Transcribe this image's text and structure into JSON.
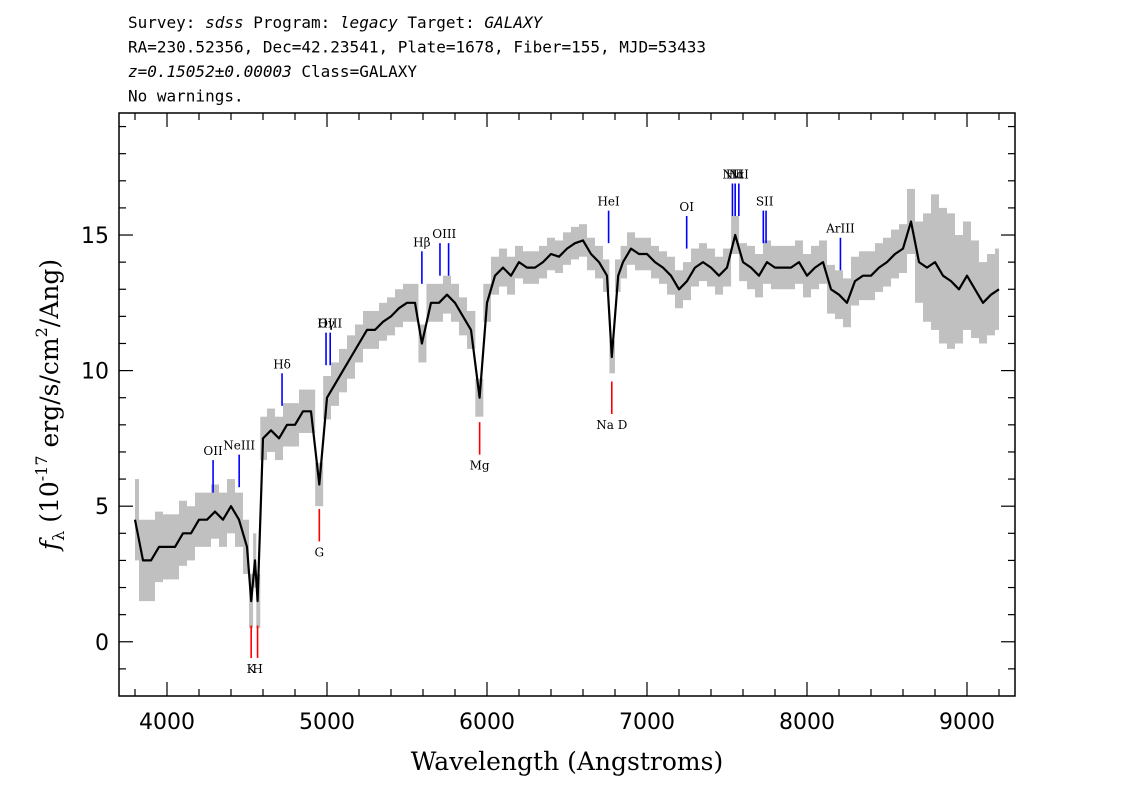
{
  "chart_data": {
    "type": "spectrum",
    "title_lines": [
      [
        {
          "text": "Survey: "
        },
        {
          "text": "sdss",
          "italic": true
        },
        {
          "text": " Program: "
        },
        {
          "text": "legacy",
          "italic": true
        },
        {
          "text": " Target: "
        },
        {
          "text": "GALAXY",
          "italic": true
        }
      ],
      [
        {
          "text": "RA=230.52356, Dec=42.23541, Plate=1678, Fiber=155, MJD=53433"
        }
      ],
      [
        {
          "text": "z=0.15052±0.00003",
          "italic": true
        },
        {
          "text": " Class=GALAXY"
        }
      ],
      [
        {
          "text": "No warnings."
        }
      ]
    ],
    "x_label": "Wavelength (Angstroms)",
    "y_label": [
      {
        "text": "f",
        "style": "italic"
      },
      {
        "text": "λ",
        "style": "sub"
      },
      {
        "text": " (10"
      },
      {
        "text": "-17",
        "style": "sup"
      },
      {
        "text": " erg/s/cm"
      },
      {
        "text": "2",
        "style": "sup"
      },
      {
        "text": "/Ang)"
      }
    ],
    "x": [
      3800,
      3850,
      3900,
      3950,
      4000,
      4050,
      4100,
      4150,
      4200,
      4250,
      4300,
      4350,
      4400,
      4450,
      4500,
      4526,
      4550,
      4566,
      4600,
      4650,
      4700,
      4750,
      4800,
      4850,
      4900,
      4952,
      5000,
      5050,
      5100,
      5150,
      5200,
      5250,
      5300,
      5350,
      5400,
      5450,
      5500,
      5550,
      5593,
      5650,
      5700,
      5750,
      5800,
      5850,
      5900,
      5954,
      6000,
      6050,
      6100,
      6150,
      6200,
      6250,
      6300,
      6350,
      6400,
      6450,
      6500,
      6550,
      6600,
      6650,
      6700,
      6750,
      6780,
      6820,
      6850,
      6900,
      6950,
      7000,
      7050,
      7100,
      7150,
      7200,
      7250,
      7300,
      7350,
      7400,
      7450,
      7500,
      7551,
      7600,
      7650,
      7700,
      7750,
      7800,
      7850,
      7900,
      7950,
      8000,
      8050,
      8100,
      8150,
      8200,
      8250,
      8300,
      8350,
      8400,
      8450,
      8500,
      8550,
      8600,
      8650,
      8700,
      8750,
      8800,
      8850,
      8900,
      8950,
      9000,
      9050,
      9100,
      9150,
      9200
    ],
    "series": [
      {
        "color": "#000000",
        "values": [
          4.5,
          3.0,
          3.0,
          3.5,
          3.5,
          3.5,
          4.0,
          4.0,
          4.5,
          4.5,
          4.8,
          4.5,
          5.0,
          4.5,
          3.5,
          1.5,
          3.0,
          1.5,
          7.5,
          7.8,
          7.5,
          8.0,
          8.0,
          8.5,
          8.5,
          5.8,
          9.0,
          9.5,
          10.0,
          10.5,
          11.0,
          11.5,
          11.5,
          11.8,
          12.0,
          12.3,
          12.5,
          12.5,
          11.0,
          12.5,
          12.5,
          12.8,
          12.5,
          12.0,
          11.5,
          9.0,
          12.5,
          13.5,
          13.8,
          13.5,
          14.0,
          13.8,
          13.8,
          14.0,
          14.3,
          14.2,
          14.5,
          14.7,
          14.8,
          14.3,
          14.0,
          13.5,
          10.5,
          13.5,
          14.0,
          14.5,
          14.3,
          14.3,
          14.0,
          13.8,
          13.5,
          13.0,
          13.3,
          13.8,
          14.0,
          13.8,
          13.5,
          13.8,
          15.0,
          14.0,
          13.8,
          13.5,
          14.0,
          13.8,
          13.8,
          13.8,
          14.0,
          13.5,
          13.8,
          14.0,
          13.0,
          12.8,
          12.5,
          13.3,
          13.5,
          13.5,
          13.8,
          14.0,
          14.3,
          14.5,
          15.5,
          14.0,
          13.8,
          14.0,
          13.5,
          13.3,
          13.0,
          13.5,
          13.0,
          12.5,
          12.8,
          13.0
        ],
        "error_color": "#c0c0c0",
        "errors": [
          1.5,
          1.5,
          1.5,
          1.3,
          1.2,
          1.2,
          1.2,
          1.0,
          1.0,
          1.0,
          1.0,
          1.0,
          1.0,
          1.0,
          1.0,
          1.0,
          1.0,
          1.0,
          0.8,
          0.8,
          0.8,
          0.8,
          0.8,
          0.8,
          0.8,
          0.8,
          0.8,
          0.8,
          0.8,
          0.8,
          0.7,
          0.7,
          0.7,
          0.7,
          0.7,
          0.7,
          0.7,
          0.7,
          0.7,
          0.7,
          0.7,
          0.7,
          0.7,
          0.7,
          0.7,
          0.7,
          0.7,
          0.7,
          0.7,
          0.7,
          0.6,
          0.6,
          0.6,
          0.6,
          0.6,
          0.6,
          0.6,
          0.6,
          0.6,
          0.6,
          0.6,
          0.6,
          0.6,
          0.6,
          0.6,
          0.6,
          0.6,
          0.6,
          0.6,
          0.6,
          0.7,
          0.7,
          0.7,
          0.7,
          0.7,
          0.7,
          0.7,
          0.7,
          0.7,
          0.7,
          0.8,
          0.8,
          0.8,
          0.8,
          0.8,
          0.8,
          0.8,
          0.8,
          0.8,
          0.8,
          0.9,
          0.9,
          0.9,
          0.9,
          0.9,
          0.9,
          0.9,
          0.9,
          0.9,
          0.9,
          1.2,
          1.5,
          2.0,
          2.5,
          2.5,
          2.5,
          2.0,
          2.0,
          1.8,
          1.5,
          1.5,
          1.5
        ]
      }
    ],
    "lines": [
      {
        "label": "OII",
        "waves": [
          4288
        ],
        "color": "#0000ff",
        "kind": "emission"
      },
      {
        "label": "NeIII",
        "waves": [
          4451
        ],
        "color": "#0000ff",
        "kind": "emission"
      },
      {
        "label": "Hδ",
        "waves": [
          4719
        ],
        "color": "#0000ff",
        "kind": "emission"
      },
      {
        "label": "Hγ",
        "waves": [
          4994
        ],
        "color": "#0000ff",
        "kind": "emission"
      },
      {
        "label": "OIII",
        "waves": [
          5020
        ],
        "color": "#0000ff",
        "kind": "emission"
      },
      {
        "label": "Hβ",
        "waves": [
          5593
        ],
        "color": "#0000ff",
        "kind": "emission"
      },
      {
        "label": "OIII",
        "waves": [
          5706,
          5760
        ],
        "color": "#0000ff",
        "kind": "emission"
      },
      {
        "label": "HeI",
        "waves": [
          6760
        ],
        "color": "#0000ff",
        "kind": "emission"
      },
      {
        "label": "OI",
        "waves": [
          7248
        ],
        "color": "#0000ff",
        "kind": "emission"
      },
      {
        "label": "NII",
        "waves": [
          7534
        ],
        "color": "#0000ff",
        "kind": "emission"
      },
      {
        "label": "Hα",
        "waves": [
          7551
        ],
        "color": "#0000ff",
        "kind": "emission"
      },
      {
        "label": "NII",
        "waves": [
          7574
        ],
        "color": "#0000ff",
        "kind": "emission"
      },
      {
        "label": "SII",
        "waves": [
          7727,
          7744
        ],
        "color": "#0000ff",
        "kind": "emission"
      },
      {
        "label": "ArIII",
        "waves": [
          8209
        ],
        "color": "#0000ff",
        "kind": "emission"
      },
      {
        "label": "K",
        "waves": [
          4526
        ],
        "color": "#ff0000",
        "kind": "absorption"
      },
      {
        "label": "H",
        "waves": [
          4566
        ],
        "color": "#ff0000",
        "kind": "absorption"
      },
      {
        "label": "G",
        "waves": [
          4952
        ],
        "color": "#ff0000",
        "kind": "absorption"
      },
      {
        "label": "Mg",
        "waves": [
          5954
        ],
        "color": "#ff0000",
        "kind": "absorption"
      },
      {
        "label": "Na D",
        "waves": [
          6780
        ],
        "color": "#ff0000",
        "kind": "absorption"
      }
    ],
    "xlim": [
      3700,
      9300
    ],
    "ylim": [
      -2,
      19.5
    ],
    "xticks": [
      4000,
      5000,
      6000,
      7000,
      8000,
      9000
    ],
    "yticks": [
      0,
      5,
      10,
      15
    ],
    "xminorticks": [
      3800,
      4200,
      4400,
      4600,
      4800,
      5200,
      5400,
      5600,
      5800,
      6200,
      6400,
      6600,
      6800,
      7200,
      7400,
      7600,
      7800,
      8200,
      8400,
      8600,
      8800,
      9200
    ],
    "yminorticks": [
      -1,
      1,
      2,
      3,
      4,
      6,
      7,
      8,
      9,
      11,
      12,
      13,
      14,
      16,
      17,
      18,
      19
    ]
  }
}
